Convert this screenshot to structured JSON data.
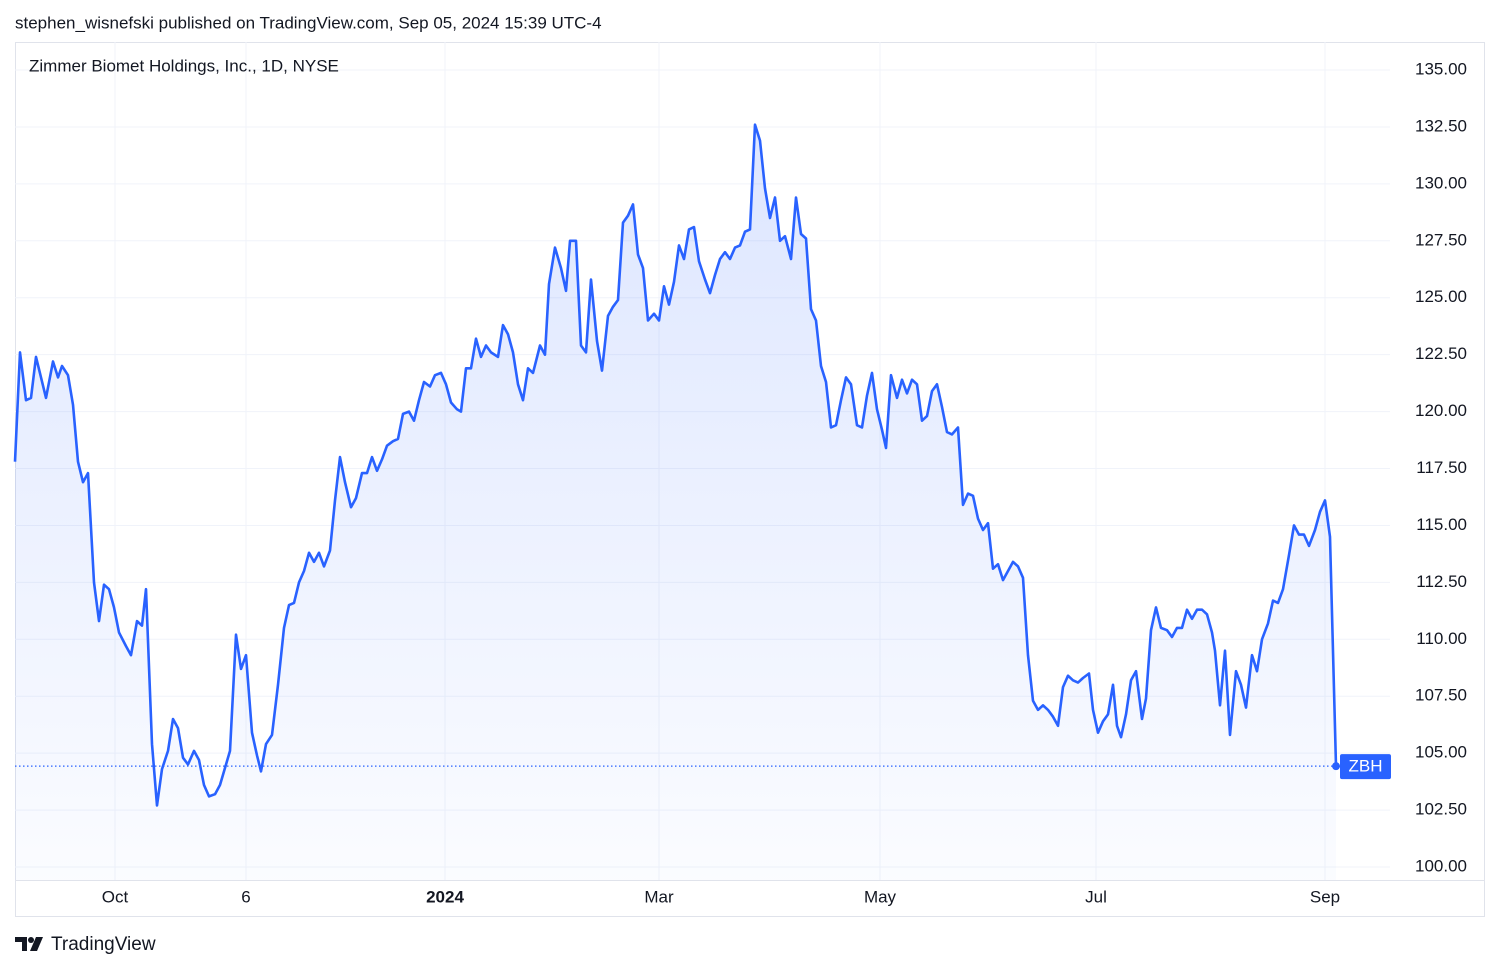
{
  "header": "stephen_wisnefski published on TradingView.com, Sep 05, 2024 15:39 UTC-4",
  "footer": "TradingView",
  "chart_data": {
    "type": "line",
    "title": "Zimmer Biomet Holdings, Inc., 1D, NYSE",
    "x": [
      0,
      1,
      2.2,
      3.2,
      4.2,
      6.2,
      7.6,
      8.6,
      9.4,
      10.6,
      11.6,
      12.6,
      13.6,
      14.6,
      15.8,
      16.8,
      17.8,
      18.8,
      19.8,
      20.8,
      22.2,
      23.2,
      24.4,
      25.4,
      26.2,
      27.4,
      28.4,
      29.4,
      30.6,
      31.6,
      32.6,
      33.6,
      34.6,
      35.8,
      36.8,
      37.8,
      38.8,
      40,
      41,
      43,
      44.2,
      45.2,
      46.2,
      47.4,
      48.4,
      49.2,
      50.2,
      51.4,
      52.6,
      53.8,
      54.8,
      55.8,
      56.8,
      57.8,
      58.8,
      59.8,
      60.8,
      61.8,
      63,
      64,
      65,
      66,
      67.2,
      68.2,
      69.4,
      70.4,
      71.4,
      72.4,
      73.4,
      74.4,
      75.6,
      76.6,
      77.6,
      78.8,
      79.8,
      80.8,
      81.8,
      83,
      84,
      85.2,
      86.2,
      87.2,
      88.4,
      89.2,
      90.2,
      91.2,
      92.2,
      93.2,
      94.2,
      95.2,
      96.6,
      97.6,
      98.6,
      99.6,
      100.6,
      101.6,
      102.6,
      103.6,
      105,
      106,
      106.8,
      108,
      109.2,
      110.2,
      111,
      112.2,
      113.2,
      114.2,
      115.2,
      116.4,
      117.4,
      118.6,
      119.6,
      120.6,
      121.6,
      122.6,
      123.6,
      124.6,
      125.6,
      126.6,
      127.8,
      128.8,
      129.8,
      130.8,
      131.8,
      132.8,
      133.8,
      134.8,
      135.8,
      136.8,
      138,
      139,
      140,
      141,
      142,
      143,
      144,
      145,
      146,
      147,
      148,
      149,
      150,
      151,
      152,
      153,
      154,
      155.2,
      156.2,
      157.2,
      158.2,
      159.2,
      160.2,
      161.2,
      162.2,
      163.2,
      164.2,
      165.2,
      166.2,
      167.2,
      168.4,
      169.4,
      170.4,
      171.4,
      172.4,
      173.4,
      174.2,
      175.2,
      176.4,
      177.4,
      178.4,
      179.4,
      180.4,
      181.4,
      182.4,
      183.4,
      184.4,
      185.4,
      186.4,
      187.4,
      188.6,
      189.6,
      190.6,
      191.6,
      192.6,
      193.6,
      194.6,
      195.6,
      196.6,
      197.6,
      198.6,
      199.6,
      200.6,
      201.6,
      202.6,
      203.6,
      204.6,
      205.6,
      206.6,
      207.6,
      208.6,
      209.6,
      210.6,
      211.6,
      212.6,
      213.6,
      214.8,
      215.6,
      216.6,
      217.6,
      218.6,
      219.6,
      220.4,
      221.2,
      222.2,
      223.2,
      224.2,
      225.4,
      226.2,
      227.2,
      228.2,
      229.2,
      230.4,
      231.4,
      232.4,
      233.4,
      234.4,
      235.4,
      236.4,
      237.4,
      238.4,
      239.4,
      240,
      241,
      242,
      243,
      244.2,
      245.2,
      246.2,
      247.4,
      248.4,
      249.4,
      250.6,
      251.6,
      252.6,
      253.6,
      254.8,
      255.8,
      256.8,
      257.8,
      258.8,
      260,
      261,
      262,
      263,
      264.2
    ],
    "series": [
      {
        "name": "ZBH",
        "color": "#2962ff",
        "values": [
          117.8,
          122.6,
          120.5,
          120.6,
          122.4,
          120.6,
          122.2,
          121.5,
          122.0,
          121.6,
          120.3,
          117.8,
          116.9,
          117.3,
          112.5,
          110.8,
          112.4,
          112.2,
          111.4,
          110.3,
          109.7,
          109.3,
          110.8,
          110.6,
          112.2,
          105.4,
          102.7,
          104.3,
          105.1,
          106.5,
          106.1,
          104.8,
          104.5,
          105.1,
          104.7,
          103.6,
          103.1,
          103.2,
          103.6,
          105.1,
          110.2,
          108.7,
          109.3,
          105.9,
          104.9,
          104.2,
          105.4,
          105.8,
          108.0,
          110.5,
          111.5,
          111.6,
          112.5,
          113.0,
          113.8,
          113.4,
          113.8,
          113.2,
          113.9,
          116.1,
          118.0,
          116.9,
          115.8,
          116.2,
          117.3,
          117.3,
          118.0,
          117.4,
          117.9,
          118.5,
          118.7,
          118.8,
          119.9,
          120.0,
          119.6,
          120.5,
          121.3,
          121.1,
          121.6,
          121.7,
          121.2,
          120.4,
          120.1,
          120.0,
          121.9,
          121.9,
          123.2,
          122.4,
          122.9,
          122.6,
          122.4,
          123.8,
          123.4,
          122.6,
          121.2,
          120.5,
          121.9,
          121.7,
          122.9,
          122.5,
          125.6,
          127.2,
          126.3,
          125.3,
          127.5,
          127.5,
          122.9,
          122.6,
          125.8,
          123.1,
          121.8,
          124.2,
          124.6,
          124.9,
          128.3,
          128.6,
          129.1,
          126.9,
          126.3,
          124.0,
          124.3,
          124.0,
          125.5,
          124.7,
          125.7,
          127.3,
          126.7,
          128.0,
          128.1,
          126.6,
          125.8,
          125.2,
          126.0,
          126.7,
          127.0,
          126.7,
          127.2,
          127.3,
          127.9,
          128.0,
          132.6,
          131.9,
          129.8,
          128.5,
          129.4,
          127.5,
          127.7,
          126.7,
          129.4,
          127.8,
          127.6,
          124.5,
          124.0,
          122.0,
          121.3,
          119.3,
          119.4,
          120.5,
          121.5,
          121.2,
          119.4,
          119.3,
          120.7,
          121.7,
          120.1,
          119.2,
          118.4,
          121.6,
          120.6,
          121.4,
          120.8,
          121.4,
          121.2,
          119.6,
          119.8,
          120.9,
          121.2,
          120.2,
          119.1,
          119.0,
          119.3,
          115.9,
          116.4,
          116.3,
          115.3,
          114.8,
          115.1,
          113.1,
          113.3,
          112.6,
          113.0,
          113.4,
          113.2,
          112.7,
          109.3,
          107.3,
          106.9,
          107.1,
          106.9,
          106.6,
          106.2,
          107.9,
          108.4,
          108.2,
          108.1,
          108.3,
          108.5,
          106.9,
          105.9,
          106.4,
          106.7,
          108.0,
          106.2,
          105.7,
          106.7,
          108.2,
          108.6,
          106.5,
          107.4,
          110.4,
          111.4,
          110.5,
          110.4,
          110.1,
          110.5,
          110.5,
          111.3,
          110.9,
          111.3,
          111.3,
          111.1,
          110.3,
          109.5,
          107.1,
          109.5,
          105.8,
          108.6,
          108.0,
          107.0,
          109.3,
          108.6,
          110.0,
          110.7,
          111.7,
          111.6,
          112.2,
          113.7,
          115.0,
          114.6,
          114.6,
          114.1,
          114.8,
          115.6,
          116.1,
          114.5,
          104.43
        ]
      }
    ],
    "xlim": [
      0,
      275
    ],
    "xticks": [
      {
        "value": 20,
        "label": "Oct"
      },
      {
        "value": 46.2,
        "label": "6"
      },
      {
        "value": 86,
        "label": "2024"
      },
      {
        "value": 128.8,
        "label": "Mar"
      },
      {
        "value": 173,
        "label": "May"
      },
      {
        "value": 216.2,
        "label": "Jul"
      },
      {
        "value": 262,
        "label": "Sep"
      }
    ],
    "ylim": [
      99.43,
      136.23
    ],
    "yticks": [
      {
        "value": 100,
        "label": "100.00"
      },
      {
        "value": 102.5,
        "label": "102.50"
      },
      {
        "value": 105,
        "label": "105.00"
      },
      {
        "value": 107.5,
        "label": "107.50"
      },
      {
        "value": 110,
        "label": "110.00"
      },
      {
        "value": 112.5,
        "label": "112.50"
      },
      {
        "value": 115,
        "label": "115.00"
      },
      {
        "value": 117.5,
        "label": "117.50"
      },
      {
        "value": 120,
        "label": "120.00"
      },
      {
        "value": 122.5,
        "label": "122.50"
      },
      {
        "value": 125,
        "label": "125.00"
      },
      {
        "value": 127.5,
        "label": "127.50"
      },
      {
        "value": 130,
        "label": "130.00"
      },
      {
        "value": 132.5,
        "label": "132.50"
      },
      {
        "value": 135,
        "label": "135.00"
      }
    ],
    "grid": true
  }
}
